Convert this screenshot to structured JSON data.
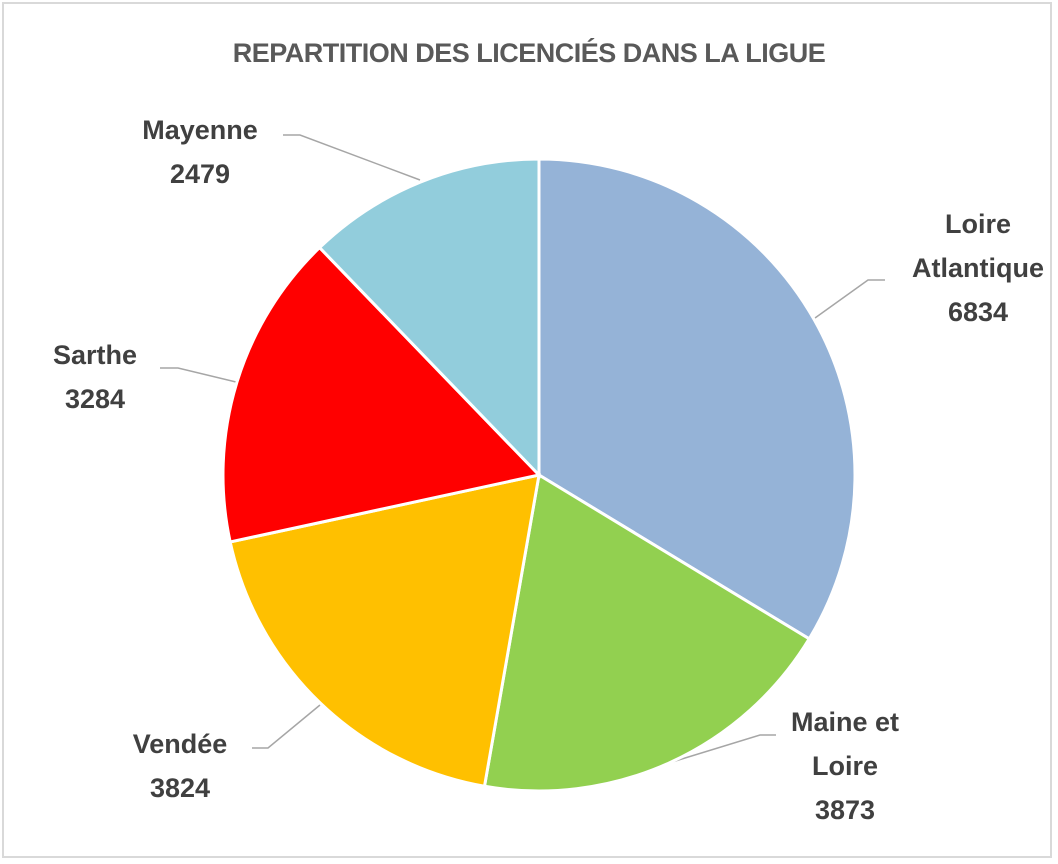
{
  "chart_data": {
    "type": "pie",
    "title": "REPARTITION DES LICENCIÉS DANS LA LIGUE",
    "categories": [
      "Loire Atlantique",
      "Maine et Loire",
      "Vendée",
      "Sarthe",
      "Mayenne"
    ],
    "values": [
      6834,
      3873,
      3824,
      3284,
      2479
    ],
    "colors": [
      "#95b3d7",
      "#92d050",
      "#ffc000",
      "#ff0000",
      "#92cddc"
    ]
  }
}
